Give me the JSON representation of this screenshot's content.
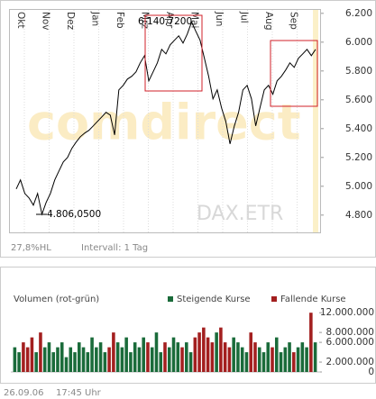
{
  "chart_data": [
    {
      "type": "line",
      "x_labels": [
        "Okt",
        "Nov",
        "Dez",
        "Jan",
        "Feb",
        "Mrz",
        "Apr",
        "Mai",
        "Jun",
        "Jul",
        "Aug",
        "Sep"
      ],
      "series": [
        {
          "color": "#000000",
          "values": [
            4981,
            5044,
            4950,
            4919,
            4869,
            4950,
            4806,
            4888,
            4950,
            5044,
            5106,
            5169,
            5200,
            5263,
            5306,
            5344,
            5369,
            5388,
            5419,
            5450,
            5481,
            5513,
            5494,
            5356,
            5669,
            5700,
            5744,
            5763,
            5794,
            5856,
            5906,
            5731,
            5794,
            5856,
            5950,
            5919,
            5981,
            6013,
            6044,
            5994,
            6056,
            6140,
            6075,
            6013,
            5888,
            5763,
            5606,
            5669,
            5544,
            5450,
            5294,
            5419,
            5513,
            5669,
            5700,
            5606,
            5419,
            5544,
            5669,
            5700,
            5638,
            5731,
            5763,
            5806,
            5856,
            5825,
            5888,
            5919,
            5950,
            5906,
            5950
          ]
        }
      ],
      "ylim": [
        4680,
        6230
      ],
      "yticks": [
        {
          "value": 4800,
          "label": "4.800"
        },
        {
          "value": 5000,
          "label": "5.000"
        },
        {
          "value": 5200,
          "label": "5.200"
        },
        {
          "value": 5400,
          "label": "5.400"
        },
        {
          "value": 5600,
          "label": "5.600"
        },
        {
          "value": 5800,
          "label": "5.800"
        },
        {
          "value": 6000,
          "label": "6.000"
        },
        {
          "value": 6200,
          "label": "6.200"
        }
      ],
      "grid": "x",
      "annotations": [
        "6.140,7200",
        "4.806,0500"
      ],
      "watermark": "comdirect",
      "symbol": "DAX.ETR",
      "notes": [
        "27,8%HL",
        "Intervall: 1 Tag"
      ]
    },
    {
      "type": "bar",
      "title": "Volumen (rot-grün)",
      "series": [
        {
          "name": "Steigende Kurse",
          "color": "#1a6b3a",
          "values": [
            5000000,
            4000000,
            null,
            null,
            null,
            4000000,
            null,
            5000000,
            6000000,
            4000000,
            5000000,
            6000000,
            3000000,
            5000000,
            4000000,
            6000000,
            5000000,
            4000000,
            7000000,
            5000000,
            6000000,
            4000000,
            null,
            null,
            6000000,
            5000000,
            7000000,
            4000000,
            6000000,
            5000000,
            7000000,
            null,
            5000000,
            8000000,
            4000000,
            null,
            5000000,
            7000000,
            6000000,
            null,
            6000000,
            4000000,
            null,
            null,
            null,
            null,
            null,
            8000000,
            null,
            null,
            null,
            7000000,
            6000000,
            5000000,
            4000000,
            null,
            null,
            5000000,
            4000000,
            6000000,
            null,
            7000000,
            4000000,
            5000000,
            6000000,
            null,
            5000000,
            6000000,
            5000000,
            null,
            6000000
          ]
        },
        {
          "name": "Fallende Kurse",
          "color": "#a31f1f",
          "values": [
            null,
            null,
            6000000,
            5000000,
            7000000,
            null,
            8000000,
            null,
            null,
            null,
            null,
            null,
            null,
            null,
            null,
            null,
            null,
            null,
            null,
            null,
            null,
            null,
            5000000,
            8000000,
            null,
            null,
            null,
            null,
            null,
            null,
            null,
            6000000,
            null,
            null,
            null,
            6000000,
            null,
            null,
            null,
            5000000,
            null,
            null,
            7000000,
            8000000,
            9000000,
            7000000,
            6000000,
            null,
            9000000,
            6000000,
            5000000,
            null,
            null,
            null,
            null,
            8000000,
            6000000,
            null,
            null,
            null,
            5000000,
            null,
            null,
            null,
            null,
            4000000,
            null,
            null,
            null,
            12000000,
            null
          ]
        }
      ],
      "ylim": [
        0,
        12400000
      ],
      "yticks": [
        0,
        {
          "value": 2000000,
          "label": "2.000.000"
        },
        {
          "value": 6000000,
          "label": "6.000.000"
        },
        {
          "value": 8000000,
          "label": "8.000.000"
        },
        {
          "value": 12000000,
          "label": "12.000.000"
        }
      ]
    }
  ],
  "footer": {
    "date": "26.09.06",
    "time": "17:45 Uhr"
  }
}
